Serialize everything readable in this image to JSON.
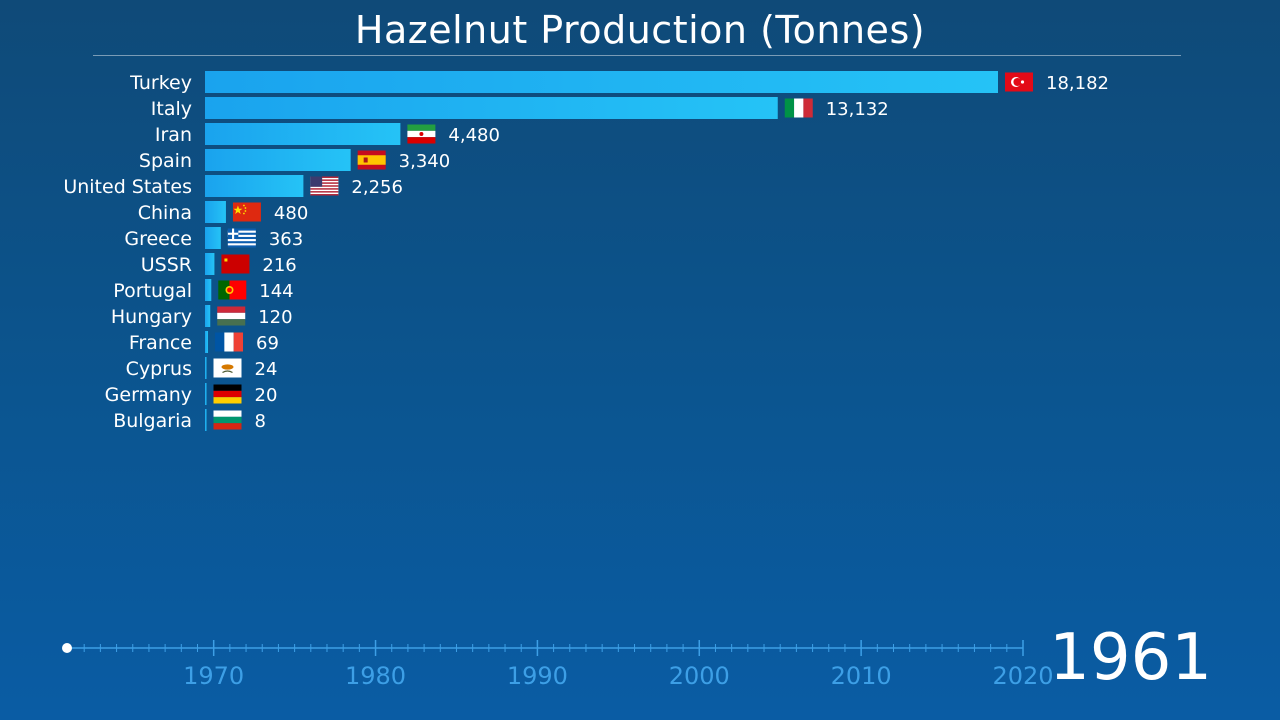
{
  "chart_data": {
    "type": "bar",
    "orientation": "horizontal",
    "title": "Hazelnut Production (Tonnes)",
    "categories": [
      "Turkey",
      "Italy",
      "Iran",
      "Spain",
      "United States",
      "China",
      "Greece",
      "USSR",
      "Portugal",
      "Hungary",
      "France",
      "Cyprus",
      "Germany",
      "Bulgaria"
    ],
    "values": [
      18182,
      13132,
      4480,
      3340,
      2256,
      480,
      363,
      216,
      144,
      120,
      69,
      24,
      20,
      8
    ],
    "value_labels": [
      "18,182",
      "13,132",
      "4,480",
      "3,340",
      "2,256",
      "480",
      "363",
      "216",
      "144",
      "120",
      "69",
      "24",
      "20",
      "8"
    ],
    "flag_icons": [
      "turkey-flag-icon",
      "italy-flag-icon",
      "iran-flag-icon",
      "spain-flag-icon",
      "united-states-flag-icon",
      "china-flag-icon",
      "greece-flag-icon",
      "ussr-flag-icon",
      "portugal-flag-icon",
      "hungary-flag-icon",
      "france-flag-icon",
      "cyprus-flag-icon",
      "germany-flag-icon",
      "bulgaria-flag-icon"
    ],
    "xlim": [
      0,
      18182
    ],
    "bar_color": "#1aa6f0",
    "bar_color_light": "#22c2f5",
    "current_year": "1961",
    "timeline": {
      "range": [
        1961,
        2020
      ],
      "major_ticks": [
        1970,
        1980,
        1990,
        2000,
        2010,
        2020
      ],
      "tick_color": "#3d9fe6"
    }
  }
}
